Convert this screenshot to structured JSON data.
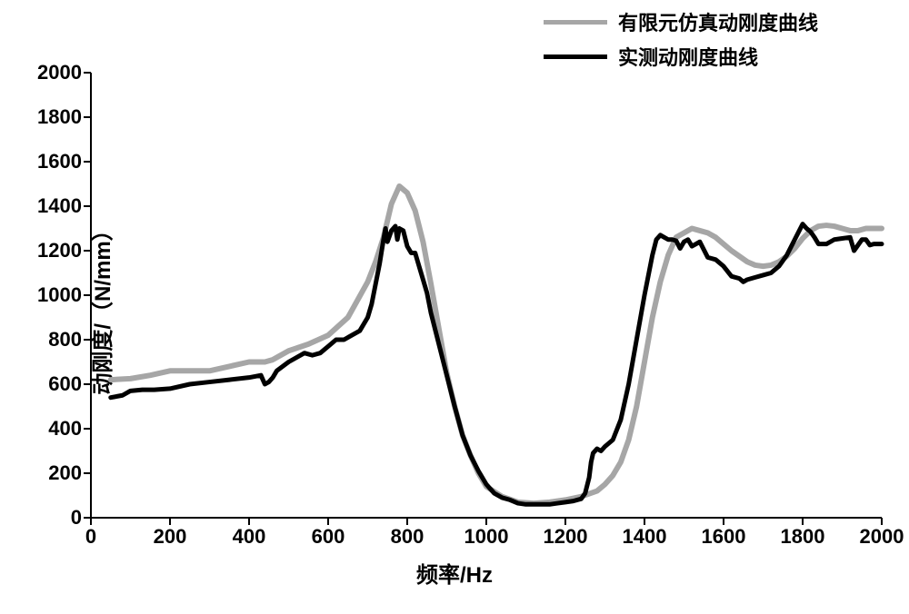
{
  "chart": {
    "type": "line",
    "background_color": "#ffffff",
    "xlabel": "频率/Hz",
    "ylabel": "动刚度/（N/mm）",
    "label_fontsize": 24,
    "label_fontweight": "bold",
    "tick_fontsize": 22,
    "tick_fontweight": "bold",
    "xlim": [
      0,
      2000
    ],
    "ylim": [
      0,
      2000
    ],
    "xtick_step": 200,
    "ytick_step": 200,
    "xticks": [
      0,
      200,
      400,
      600,
      800,
      1000,
      1200,
      1400,
      1600,
      1800,
      2000
    ],
    "yticks": [
      0,
      200,
      400,
      600,
      800,
      1000,
      1200,
      1400,
      1600,
      1800,
      2000
    ],
    "axis_color": "#000000",
    "axis_width": 2,
    "tick_length": 8,
    "grid": false,
    "legend": {
      "position": "top-right",
      "fontsize": 22,
      "fontweight": "bold",
      "swatch_width": 70,
      "swatch_height": 5,
      "items": [
        {
          "label": "有限元仿真动刚度曲线",
          "color": "#a6a6a6"
        },
        {
          "label": "实测动刚度曲线",
          "color": "#000000"
        }
      ]
    },
    "series": [
      {
        "name": "fem",
        "label": "有限元仿真动刚度曲线",
        "color": "#a6a6a6",
        "line_width": 6,
        "x": [
          50,
          100,
          150,
          200,
          250,
          300,
          350,
          400,
          440,
          460,
          500,
          550,
          600,
          650,
          700,
          720,
          740,
          760,
          780,
          800,
          820,
          840,
          860,
          880,
          900,
          920,
          940,
          960,
          980,
          1000,
          1040,
          1080,
          1120,
          1160,
          1200,
          1240,
          1280,
          1300,
          1320,
          1340,
          1360,
          1380,
          1400,
          1420,
          1440,
          1460,
          1480,
          1500,
          1520,
          1540,
          1560,
          1580,
          1600,
          1620,
          1640,
          1660,
          1680,
          1700,
          1720,
          1740,
          1760,
          1780,
          1800,
          1820,
          1840,
          1860,
          1880,
          1900,
          1920,
          1940,
          1960,
          1980,
          2000
        ],
        "y": [
          620,
          625,
          640,
          660,
          660,
          660,
          680,
          700,
          700,
          710,
          750,
          780,
          820,
          900,
          1060,
          1150,
          1260,
          1410,
          1490,
          1460,
          1380,
          1240,
          1050,
          850,
          650,
          500,
          370,
          280,
          200,
          140,
          95,
          70,
          65,
          70,
          80,
          95,
          120,
          150,
          190,
          250,
          350,
          500,
          700,
          900,
          1060,
          1180,
          1260,
          1280,
          1300,
          1290,
          1280,
          1260,
          1230,
          1200,
          1175,
          1150,
          1135,
          1130,
          1135,
          1150,
          1175,
          1210,
          1255,
          1290,
          1310,
          1314,
          1310,
          1300,
          1290,
          1290,
          1300,
          1300,
          1300
        ]
      },
      {
        "name": "measured",
        "label": "实测动刚度曲线",
        "color": "#000000",
        "line_width": 5,
        "x": [
          50,
          80,
          100,
          130,
          160,
          200,
          250,
          300,
          350,
          400,
          430,
          440,
          450,
          460,
          470,
          500,
          540,
          560,
          580,
          600,
          620,
          640,
          660,
          680,
          700,
          710,
          720,
          730,
          740,
          745,
          750,
          760,
          770,
          775,
          780,
          790,
          800,
          810,
          820,
          830,
          840,
          850,
          860,
          880,
          900,
          920,
          940,
          960,
          980,
          1000,
          1020,
          1040,
          1060,
          1080,
          1100,
          1120,
          1140,
          1160,
          1180,
          1200,
          1220,
          1240,
          1250,
          1260,
          1265,
          1270,
          1280,
          1290,
          1300,
          1320,
          1340,
          1360,
          1380,
          1400,
          1420,
          1430,
          1440,
          1450,
          1460,
          1470,
          1480,
          1490,
          1500,
          1510,
          1520,
          1530,
          1540,
          1560,
          1580,
          1600,
          1620,
          1640,
          1650,
          1660,
          1680,
          1700,
          1720,
          1740,
          1760,
          1780,
          1800,
          1810,
          1820,
          1830,
          1840,
          1860,
          1880,
          1900,
          1920,
          1930,
          1940,
          1950,
          1960,
          1970,
          1980,
          2000
        ],
        "y": [
          540,
          550,
          570,
          575,
          575,
          580,
          600,
          610,
          620,
          630,
          640,
          600,
          610,
          630,
          660,
          700,
          740,
          730,
          740,
          770,
          800,
          800,
          820,
          840,
          900,
          960,
          1050,
          1140,
          1250,
          1300,
          1240,
          1290,
          1310,
          1250,
          1300,
          1290,
          1220,
          1190,
          1190,
          1130,
          1070,
          1010,
          920,
          780,
          640,
          500,
          370,
          280,
          210,
          150,
          110,
          90,
          80,
          65,
          60,
          60,
          60,
          60,
          65,
          70,
          75,
          85,
          110,
          180,
          250,
          290,
          310,
          300,
          320,
          350,
          440,
          600,
          800,
          1000,
          1180,
          1250,
          1270,
          1260,
          1250,
          1250,
          1245,
          1210,
          1240,
          1250,
          1220,
          1230,
          1240,
          1170,
          1160,
          1130,
          1085,
          1075,
          1060,
          1070,
          1080,
          1090,
          1100,
          1130,
          1180,
          1250,
          1320,
          1300,
          1285,
          1260,
          1230,
          1230,
          1250,
          1255,
          1260,
          1200,
          1225,
          1250,
          1250,
          1225,
          1230,
          1230
        ]
      }
    ]
  }
}
